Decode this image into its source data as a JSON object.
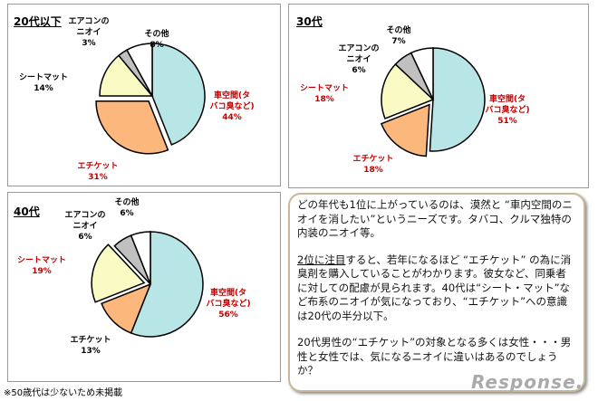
{
  "chart_data": [
    {
      "type": "pie",
      "title": "20代以下",
      "categories": [
        "車空間(タバコ臭など)",
        "エチケット",
        "シートマット",
        "エアコンのニオイ",
        "その他"
      ],
      "values": [
        44,
        31,
        14,
        3,
        8
      ],
      "label_colors": [
        "#c00000",
        "#c00000",
        "#000000",
        "#000000",
        "#000000"
      ],
      "exploded": "エチケット"
    },
    {
      "type": "pie",
      "title": "30代",
      "categories": [
        "車空間(タバコ臭など)",
        "エチケット",
        "シートマット",
        "エアコンのニオイ",
        "その他"
      ],
      "values": [
        51,
        18,
        18,
        6,
        7
      ],
      "label_colors": [
        "#c00000",
        "#c00000",
        "#c00000",
        "#000000",
        "#000000"
      ],
      "exploded": "エチケット"
    },
    {
      "type": "pie",
      "title": "40代",
      "categories": [
        "車空間(タバコ臭など)",
        "エチケット",
        "シートマット",
        "エアコンのニオイ",
        "その他"
      ],
      "values": [
        56,
        13,
        19,
        6,
        6
      ],
      "label_colors": [
        "#c00000",
        "#000000",
        "#c00000",
        "#000000",
        "#000000"
      ],
      "exploded": "シートマット"
    }
  ],
  "slice_colors": [
    "#b8e6e6",
    "#fbb77c",
    "#fafac4",
    "#c0c0c0",
    "#ffffff"
  ],
  "comment": {
    "p1": "どの年代も1位に上がっているのは、漠然と “車内空間のニオイを消したい”というニーズです。タバコ、クルマ独特の内装のニオイ等。",
    "p2_underlined": "2位に注目",
    "p2": "すると、若年になるほど “エチケット” の為に消臭剤を購入していることがわかります。彼女など、同乗者に対しての配慮が見られます。40代は“シート・マット”など布系のニオイが気になっており、“エチケット”への意識は20代の半分以下。",
    "p3": "20代男性の“エチケット”の対象となる多くは女性・・・男性と女性では、気になるニオイに違いはあるのでしょうか？"
  },
  "footnote": "※50歳代は少ないため未掲載",
  "logo": "Response."
}
